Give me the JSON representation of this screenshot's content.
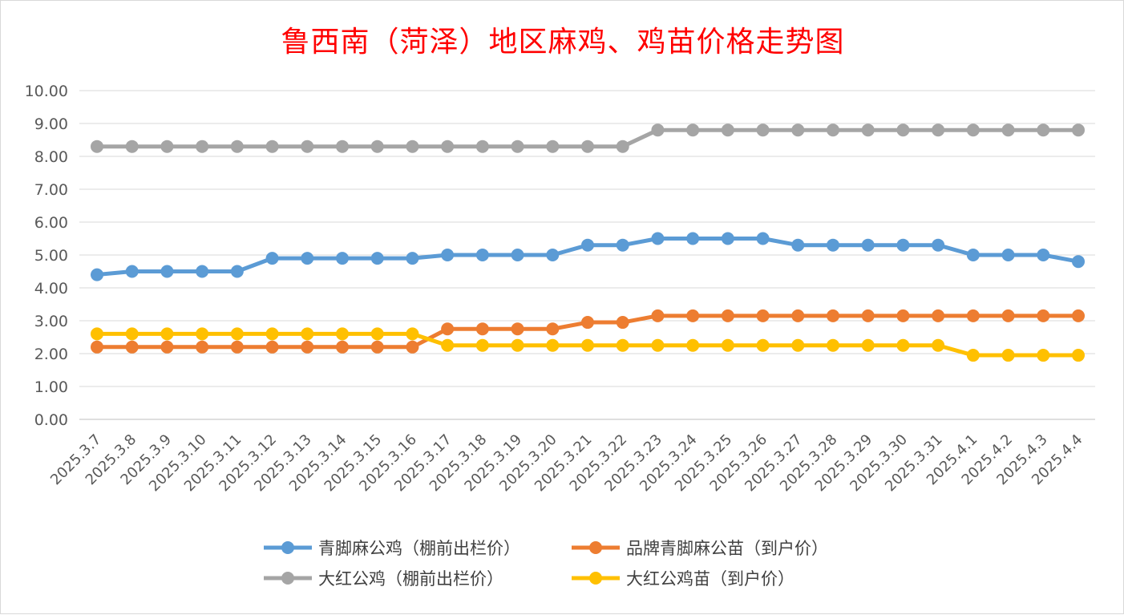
{
  "chart_data": {
    "type": "line",
    "title": "鲁西南（菏泽）地区麻鸡、鸡苗价格走势图",
    "xlabel": "",
    "ylabel": "",
    "ylim": [
      0,
      10
    ],
    "yticks": [
      "0.00",
      "1.00",
      "2.00",
      "3.00",
      "4.00",
      "5.00",
      "6.00",
      "7.00",
      "8.00",
      "9.00",
      "10.00"
    ],
    "grid": true,
    "legend_position": "bottom",
    "categories": [
      "2025.3.7",
      "2025.3.8",
      "2025.3.9",
      "2025.3.10",
      "2025.3.11",
      "2025.3.12",
      "2025.3.13",
      "2025.3.14",
      "2025.3.15",
      "2025.3.16",
      "2025.3.17",
      "2025.3.18",
      "2025.3.19",
      "2025.3.20",
      "2025.3.21",
      "2025.3.22",
      "2025.3.23",
      "2025.3.24",
      "2025.3.25",
      "2025.3.26",
      "2025.3.27",
      "2025.3.28",
      "2025.3.29",
      "2025.3.30",
      "2025.3.31",
      "2025.4.1",
      "2025.4.2",
      "2025.4.3",
      "2025.4.4"
    ],
    "series": [
      {
        "name": "青脚麻公鸡（棚前出栏价）",
        "color": "#5b9bd5",
        "values": [
          4.4,
          4.5,
          4.5,
          4.5,
          4.5,
          4.9,
          4.9,
          4.9,
          4.9,
          4.9,
          5.0,
          5.0,
          5.0,
          5.0,
          5.3,
          5.3,
          5.5,
          5.5,
          5.5,
          5.5,
          5.3,
          5.3,
          5.3,
          5.3,
          5.3,
          5.0,
          5.0,
          5.0,
          4.8
        ]
      },
      {
        "name": "品牌青脚麻公苗（到户价）",
        "color": "#ed7d31",
        "values": [
          2.2,
          2.2,
          2.2,
          2.2,
          2.2,
          2.2,
          2.2,
          2.2,
          2.2,
          2.2,
          2.75,
          2.75,
          2.75,
          2.75,
          2.95,
          2.95,
          3.15,
          3.15,
          3.15,
          3.15,
          3.15,
          3.15,
          3.15,
          3.15,
          3.15,
          3.15,
          3.15,
          3.15,
          3.15
        ]
      },
      {
        "name": "大红公鸡（棚前出栏价）",
        "color": "#a5a5a5",
        "values": [
          8.3,
          8.3,
          8.3,
          8.3,
          8.3,
          8.3,
          8.3,
          8.3,
          8.3,
          8.3,
          8.3,
          8.3,
          8.3,
          8.3,
          8.3,
          8.3,
          8.8,
          8.8,
          8.8,
          8.8,
          8.8,
          8.8,
          8.8,
          8.8,
          8.8,
          8.8,
          8.8,
          8.8,
          8.8
        ]
      },
      {
        "name": "大红公鸡苗（到户价）",
        "color": "#ffc000",
        "values": [
          2.6,
          2.6,
          2.6,
          2.6,
          2.6,
          2.6,
          2.6,
          2.6,
          2.6,
          2.6,
          2.25,
          2.25,
          2.25,
          2.25,
          2.25,
          2.25,
          2.25,
          2.25,
          2.25,
          2.25,
          2.25,
          2.25,
          2.25,
          2.25,
          2.25,
          1.95,
          1.95,
          1.95,
          1.95
        ]
      }
    ]
  }
}
